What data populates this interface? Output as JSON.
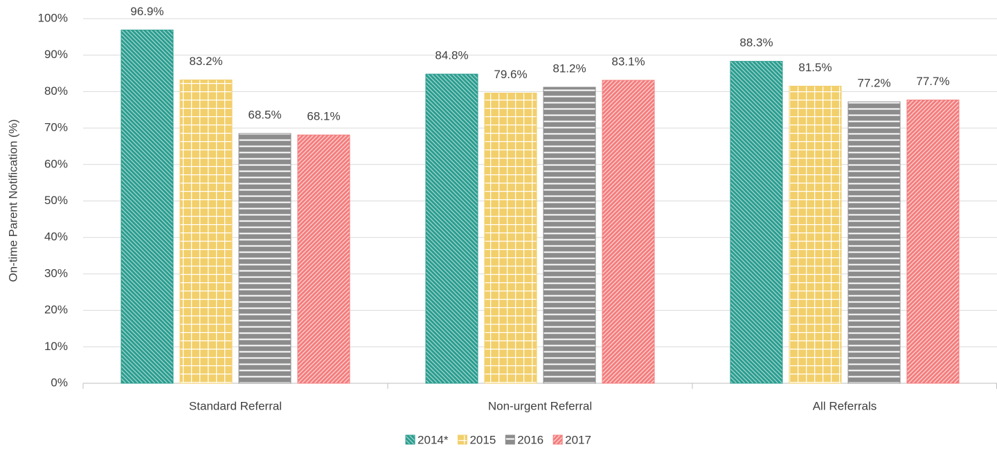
{
  "chart_data": {
    "type": "bar",
    "y_label": "On-time Parent Notification (%)",
    "categories": [
      "Standard Referral",
      "Non-urgent Referral",
      "All Referrals"
    ],
    "series": [
      {
        "name": "2014*",
        "color": "#2a9d8f",
        "values": [
          96.9,
          84.8,
          88.3
        ],
        "value_labels": [
          "96.9%",
          "84.8%",
          "88.3%"
        ]
      },
      {
        "name": "2015",
        "color": "#f2cf6b",
        "values": [
          83.2,
          79.6,
          81.5
        ],
        "value_labels": [
          "83.2%",
          "79.6%",
          "81.5%"
        ]
      },
      {
        "name": "2016",
        "color": "#8c8c8c",
        "values": [
          68.5,
          81.2,
          77.2
        ],
        "value_labels": [
          "68.5%",
          "81.2%",
          "77.2%"
        ]
      },
      {
        "name": "2017",
        "color": "#f47c7c",
        "values": [
          68.1,
          83.1,
          77.7
        ],
        "value_labels": [
          "68.1%",
          "83.1%",
          "77.7%"
        ]
      }
    ],
    "ylim": [
      0,
      100
    ],
    "yticks": [
      {
        "value": 0,
        "label": "0%"
      },
      {
        "value": 10,
        "label": "10%"
      },
      {
        "value": 20,
        "label": "20%"
      },
      {
        "value": 30,
        "label": "30%"
      },
      {
        "value": 40,
        "label": "40%"
      },
      {
        "value": 50,
        "label": "50%"
      },
      {
        "value": 60,
        "label": "60%"
      },
      {
        "value": 70,
        "label": "70%"
      },
      {
        "value": 80,
        "label": "80%"
      },
      {
        "value": 90,
        "label": "90%"
      },
      {
        "value": 100,
        "label": "100%"
      }
    ],
    "grid": true,
    "legend": "bottom"
  }
}
